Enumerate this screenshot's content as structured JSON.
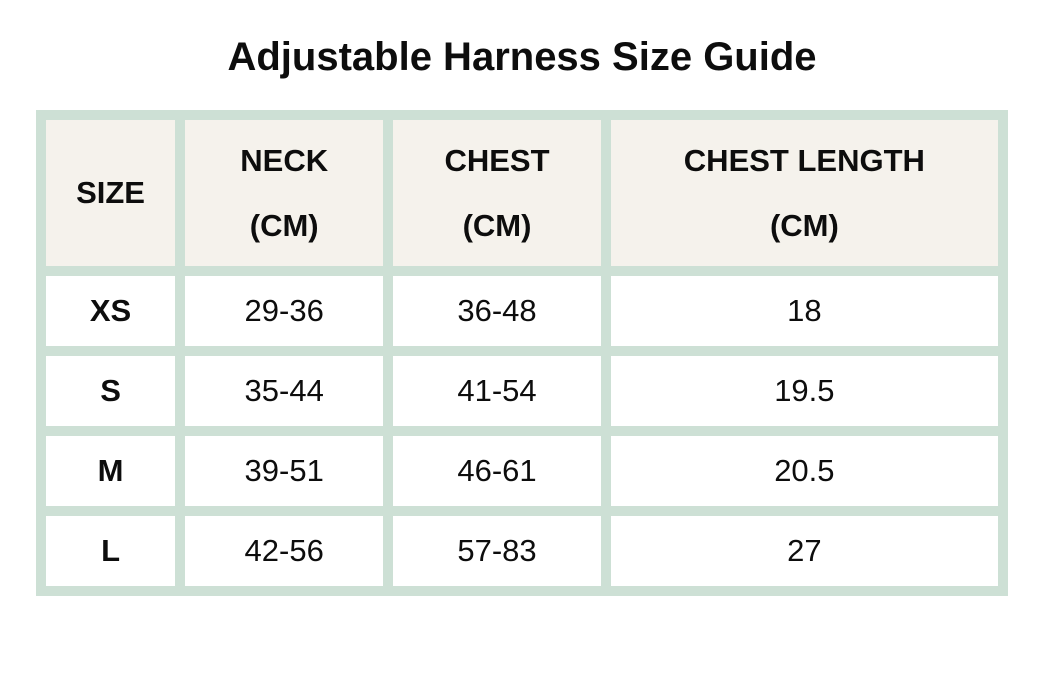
{
  "title": "Adjustable Harness Size Guide",
  "chart_data": {
    "type": "table",
    "title": "Adjustable Harness Size Guide",
    "columns": [
      {
        "label": "SIZE",
        "unit": ""
      },
      {
        "label": "NECK",
        "unit": "(CM)"
      },
      {
        "label": "CHEST",
        "unit": "(CM)"
      },
      {
        "label": "CHEST LENGTH",
        "unit": "(CM)"
      }
    ],
    "rows": [
      [
        "XS",
        "29-36",
        "36-48",
        "18"
      ],
      [
        "S",
        "35-44",
        "41-54",
        "19.5"
      ],
      [
        "M",
        "39-51",
        "46-61",
        "20.5"
      ],
      [
        "L",
        "42-56",
        "57-83",
        "27"
      ]
    ]
  },
  "colors": {
    "table_frame": "#cde0d5",
    "header_cell_bg": "#f5f2ec",
    "body_cell_bg": "#ffffff",
    "text": "#0d0d0d",
    "page_bg": "#ffffff"
  }
}
